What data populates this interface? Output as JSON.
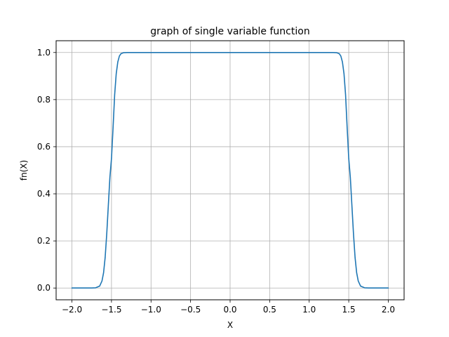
{
  "chart_data": {
    "type": "line",
    "title": "graph of single variable function",
    "xlabel": "X",
    "ylabel": "fn(X)",
    "xlim": [
      -2.2,
      2.2
    ],
    "ylim": [
      -0.05,
      1.05
    ],
    "xticks": [
      -2.0,
      -1.5,
      -1.0,
      -0.5,
      0.0,
      0.5,
      1.0,
      1.5,
      2.0
    ],
    "xtick_labels": [
      "−2.0",
      "−1.5",
      "−1.0",
      "−0.5",
      "0.0",
      "0.5",
      "1.0",
      "1.5",
      "2.0"
    ],
    "yticks": [
      0.0,
      0.2,
      0.4,
      0.6,
      0.8,
      1.0
    ],
    "ytick_labels": [
      "0.0",
      "0.2",
      "0.4",
      "0.6",
      "0.8",
      "1.0"
    ],
    "grid": true,
    "series": [
      {
        "color": "#1f77b4",
        "x": [
          -2.0,
          -1.9,
          -1.8,
          -1.75,
          -1.7,
          -1.65,
          -1.62,
          -1.6,
          -1.58,
          -1.56,
          -1.54,
          -1.52,
          -1.5,
          -1.48,
          -1.46,
          -1.44,
          -1.42,
          -1.4,
          -1.38,
          -1.35,
          -1.3,
          -1.2,
          -1.0,
          -0.5,
          0.0,
          0.5,
          1.0,
          1.2,
          1.3,
          1.35,
          1.38,
          1.4,
          1.42,
          1.44,
          1.46,
          1.48,
          1.5,
          1.52,
          1.54,
          1.56,
          1.58,
          1.6,
          1.62,
          1.65,
          1.7,
          1.75,
          1.8,
          1.9,
          2.0
        ],
        "y": [
          0.0,
          0.0,
          0.0,
          0.0,
          0.001,
          0.008,
          0.03,
          0.065,
          0.13,
          0.23,
          0.35,
          0.47,
          0.55,
          0.68,
          0.82,
          0.91,
          0.96,
          0.985,
          0.995,
          0.999,
          1.0,
          1.0,
          1.0,
          1.0,
          1.0,
          1.0,
          1.0,
          1.0,
          1.0,
          0.999,
          0.995,
          0.985,
          0.96,
          0.91,
          0.82,
          0.68,
          0.55,
          0.47,
          0.35,
          0.23,
          0.13,
          0.065,
          0.03,
          0.008,
          0.001,
          0.0,
          0.0,
          0.0,
          0.0
        ]
      }
    ]
  }
}
